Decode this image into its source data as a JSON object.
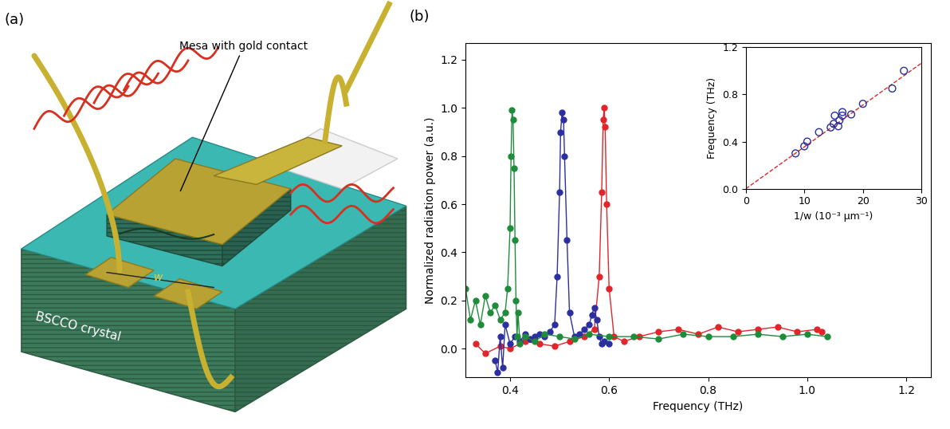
{
  "panel_a": {
    "label": "(a)",
    "annotation": "Mesa with gold contact",
    "crystal": "BSCCO crystal",
    "width": "w"
  },
  "chart_data": [
    {
      "type": "line",
      "title": "(b)",
      "x_label": "Frequency (THz)",
      "y_label": "Normalized radiation power (a.u.)",
      "xlim": [
        0.31,
        1.25
      ],
      "xticks": [
        0.4,
        0.6,
        0.8,
        1.0,
        1.2
      ],
      "ylim": [
        -0.12,
        1.27
      ],
      "yticks": [
        0.0,
        0.2,
        0.4,
        0.6,
        0.8,
        1.0,
        1.2
      ],
      "series": [
        {
          "color": "#e0262b",
          "marker": "circle",
          "line_style": "solid",
          "x": [
            0.33,
            0.35,
            0.38,
            0.4,
            0.43,
            0.46,
            0.49,
            0.52,
            0.55,
            0.57,
            0.58,
            0.585,
            0.588,
            0.59,
            0.592,
            0.595,
            0.6,
            0.61,
            0.63,
            0.66,
            0.7,
            0.74,
            0.78,
            0.82,
            0.86,
            0.9,
            0.94,
            0.98,
            1.02,
            1.03
          ],
          "values": [
            0.02,
            -0.02,
            0.01,
            0.0,
            0.03,
            0.02,
            0.01,
            0.03,
            0.05,
            0.08,
            0.3,
            0.65,
            0.95,
            1.0,
            0.92,
            0.6,
            0.25,
            0.05,
            0.03,
            0.05,
            0.07,
            0.08,
            0.06,
            0.09,
            0.07,
            0.08,
            0.09,
            0.07,
            0.08,
            0.07
          ]
        },
        {
          "color": "#2b2fa0",
          "marker": "circle",
          "line_style": "solid",
          "x": [
            0.37,
            0.375,
            0.38,
            0.385,
            0.39,
            0.4,
            0.41,
            0.42,
            0.43,
            0.44,
            0.45,
            0.46,
            0.47,
            0.48,
            0.49,
            0.495,
            0.5,
            0.502,
            0.505,
            0.508,
            0.51,
            0.515,
            0.52,
            0.53,
            0.54,
            0.55,
            0.56,
            0.565,
            0.57,
            0.575,
            0.58,
            0.585,
            0.59,
            0.6
          ],
          "values": [
            -0.05,
            -0.1,
            0.05,
            -0.08,
            0.1,
            0.02,
            0.05,
            0.03,
            0.06,
            0.04,
            0.05,
            0.06,
            0.05,
            0.07,
            0.1,
            0.3,
            0.65,
            0.9,
            0.98,
            0.95,
            0.8,
            0.45,
            0.15,
            0.05,
            0.06,
            0.08,
            0.1,
            0.14,
            0.17,
            0.12,
            0.05,
            0.02,
            0.03,
            0.02
          ]
        },
        {
          "color": "#1e8c3a",
          "marker": "circle",
          "line_style": "solid",
          "x": [
            0.31,
            0.32,
            0.33,
            0.34,
            0.35,
            0.36,
            0.37,
            0.38,
            0.39,
            0.395,
            0.4,
            0.402,
            0.404,
            0.406,
            0.408,
            0.41,
            0.412,
            0.414,
            0.416,
            0.42,
            0.43,
            0.45,
            0.47,
            0.5,
            0.53,
            0.56,
            0.6,
            0.65,
            0.7,
            0.75,
            0.8,
            0.85,
            0.9,
            0.95,
            1.0,
            1.04
          ],
          "values": [
            0.25,
            0.12,
            0.2,
            0.1,
            0.22,
            0.15,
            0.18,
            0.12,
            0.15,
            0.25,
            0.5,
            0.8,
            0.99,
            0.95,
            0.75,
            0.45,
            0.2,
            0.05,
            0.15,
            0.02,
            0.05,
            0.03,
            0.06,
            0.05,
            0.04,
            0.06,
            0.05,
            0.05,
            0.04,
            0.06,
            0.05,
            0.05,
            0.06,
            0.05,
            0.06,
            0.05
          ]
        }
      ]
    },
    {
      "type": "scatter",
      "x_label": "1/w (10⁻³ μm⁻¹)",
      "y_label": "Frequency (THz)",
      "xlim": [
        0,
        30
      ],
      "xticks": [
        0,
        10,
        20,
        30
      ],
      "ylim": [
        0.0,
        1.2
      ],
      "yticks": [
        0.0,
        0.4,
        0.8,
        1.2
      ],
      "series": [
        {
          "type": "scatter",
          "color": "#2b2fa0",
          "marker": "open_circle",
          "x": [
            8.5,
            10,
            10.5,
            12.5,
            14.5,
            15,
            15.2,
            15.8,
            16,
            16.5,
            16.5,
            18,
            20,
            25,
            27
          ],
          "values": [
            0.3,
            0.36,
            0.4,
            0.48,
            0.52,
            0.55,
            0.62,
            0.53,
            0.58,
            0.62,
            0.65,
            0.63,
            0.72,
            0.85,
            1.0
          ]
        },
        {
          "type": "line",
          "color": "#e0262b",
          "line_style": "dashed",
          "x": [
            0,
            30
          ],
          "values": [
            0.0,
            1.065
          ]
        }
      ]
    }
  ]
}
